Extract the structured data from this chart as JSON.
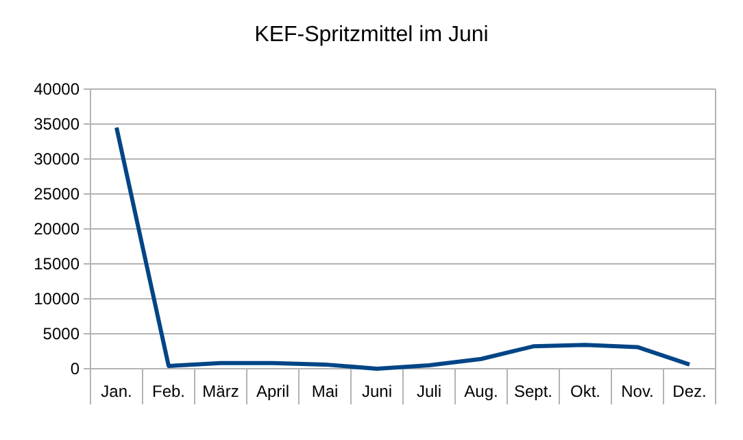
{
  "chart_data": {
    "type": "line",
    "title": "KEF-Spritzmittel im Juni",
    "categories": [
      "Jan.",
      "Feb.",
      "März",
      "April",
      "Mai",
      "Juni",
      "Juli",
      "Aug.",
      "Sept.",
      "Okt.",
      "Nov.",
      "Dez."
    ],
    "series": [
      {
        "color": "#004586",
        "values": [
          34500,
          400,
          800,
          800,
          600,
          0,
          500,
          1400,
          3200,
          3400,
          3100,
          600
        ]
      }
    ],
    "ylim": [
      0,
      40000
    ],
    "yticks": [
      0,
      5000,
      10000,
      15000,
      20000,
      25000,
      30000,
      35000,
      40000
    ],
    "grid": "y",
    "marker": "none",
    "line_style": "solid",
    "legend": false
  }
}
